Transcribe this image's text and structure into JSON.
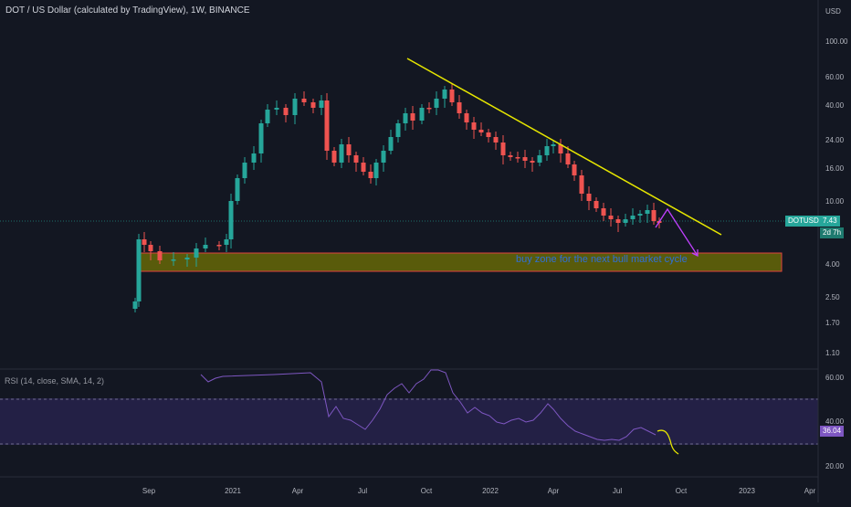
{
  "header": {
    "title": "DOT / US Dollar (calculated by TradingView), 1W, BINANCE"
  },
  "price_axis": {
    "currency": "USD",
    "ticks": [
      "100.00",
      "60.00",
      "40.00",
      "24.00",
      "16.00",
      "10.00",
      "4.00",
      "2.50",
      "1.70",
      "1.10"
    ]
  },
  "rsi_axis": {
    "ticks": [
      "60.00",
      "40.00",
      "20.00"
    ]
  },
  "time_axis": {
    "labels": [
      "Sep",
      "2021",
      "Apr",
      "Jul",
      "Oct",
      "2022",
      "Apr",
      "Jul",
      "Oct",
      "2023",
      "Apr"
    ]
  },
  "symbol_badge": {
    "symbol": "DOTUSD",
    "price": "7.43",
    "countdown": "2d 7h"
  },
  "rsi": {
    "label": "RSI (14, close, SMA, 14, 2)",
    "value": "36.04"
  },
  "annotation": {
    "text": "buy zone for the next bull market cycle"
  },
  "colors": {
    "background": "#131722",
    "up": "#26a69a",
    "down": "#ef5350",
    "trendline": "#e6e600",
    "zone_fill": "#808000",
    "zone_border": "#e0433f",
    "projection_arrow": "#c040ff",
    "rsi_line": "#7e57c2",
    "rsi_projection": "#e6e600",
    "annotation_text": "#2f6fd8"
  }
}
